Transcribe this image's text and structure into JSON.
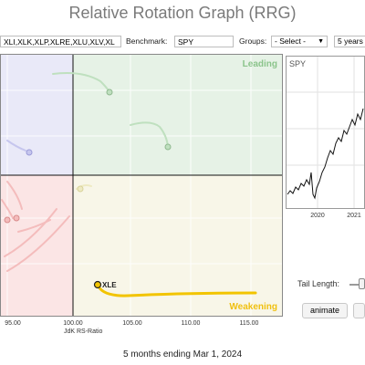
{
  "header": {
    "title": "Relative Rotation Graph (RRG)"
  },
  "toolbar": {
    "symbols_value": "XLI,XLK,XLP,XLRE,XLU,XLV,XL",
    "benchmark_label": "Benchmark:",
    "benchmark_value": "SPY",
    "groups_label": "Groups:",
    "groups_value": "- Select -",
    "period_value": "5 years"
  },
  "rrg": {
    "quadrant_labels": {
      "leading": "Leading",
      "weakening": "Weakening"
    },
    "x_ticks": [
      "95.00",
      "100.00",
      "105.00",
      "110.00",
      "115.00"
    ],
    "x_axis_label": "JdK RS-Ratio",
    "highlighted_symbol": "XLE",
    "colors": {
      "leading_bg": "#e6f2e6",
      "improving_bg": "#e9e9f8",
      "lagging_bg": "#fbe5e5",
      "weakening_bg": "#f8f6e8",
      "xle_tail": "#f2c400"
    }
  },
  "mini_chart": {
    "symbol": "SPY",
    "x_ticks": [
      "2020",
      "2021"
    ]
  },
  "controls": {
    "tail_length_label": "Tail Length:",
    "animate_label": "animate"
  },
  "footer": {
    "caption": "5 months ending Mar 1, 2024"
  }
}
